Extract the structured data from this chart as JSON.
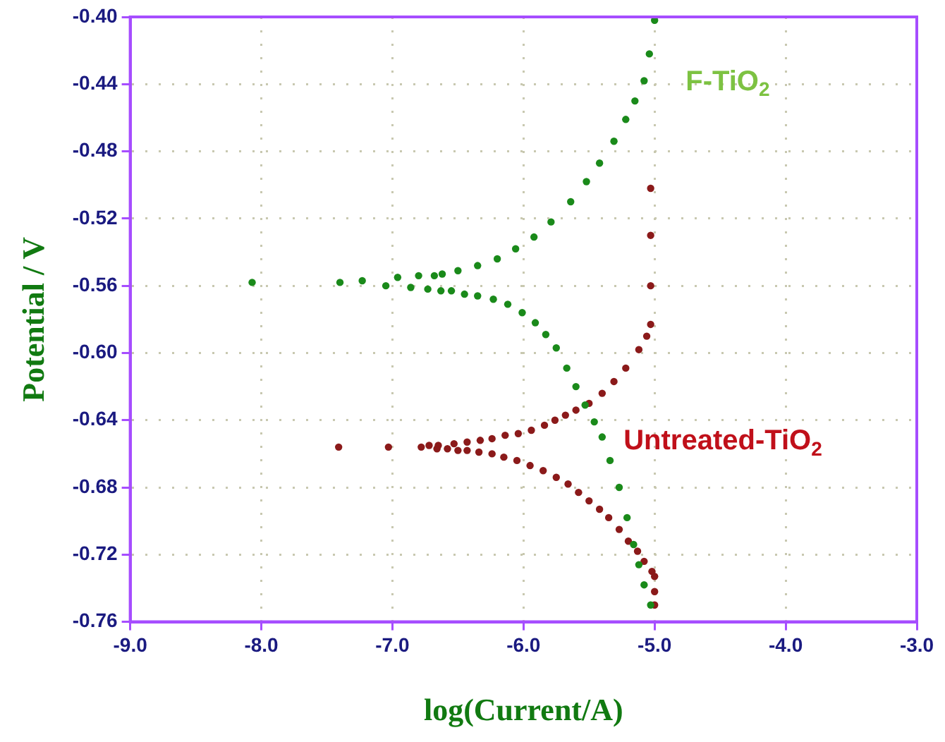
{
  "chart_data": {
    "type": "scatter",
    "xlabel": "log(Current/A)",
    "ylabel": "Potential / V",
    "xlim": [
      -9.0,
      -3.0
    ],
    "xticks": [
      {
        "value": -9,
        "label": "-9.0"
      },
      {
        "value": -8,
        "label": "-8.0"
      },
      {
        "value": -7,
        "label": "-7.0"
      },
      {
        "value": -6,
        "label": "-6.0"
      },
      {
        "value": -5,
        "label": "-5.0"
      },
      {
        "value": -4,
        "label": "-4.0"
      },
      {
        "value": -3,
        "label": "-3.0"
      }
    ],
    "ylim": [
      -0.76,
      -0.4
    ],
    "yticks": [
      {
        "value": -0.76,
        "label": "-0.76"
      },
      {
        "value": -0.72,
        "label": "-0.72"
      },
      {
        "value": -0.68,
        "label": "-0.68"
      },
      {
        "value": -0.64,
        "label": "-0.64"
      },
      {
        "value": -0.6,
        "label": "-0.60"
      },
      {
        "value": -0.56,
        "label": "-0.56"
      },
      {
        "value": -0.52,
        "label": "-0.52"
      },
      {
        "value": -0.48,
        "label": "-0.48"
      },
      {
        "value": -0.44,
        "label": "-0.44"
      },
      {
        "value": -0.4,
        "label": "-0.40"
      }
    ],
    "grid": true,
    "marker": "circle",
    "legend": false,
    "series": [
      {
        "name": "F-TiO$_{2}$",
        "color": "#1a8a1a",
        "x": [
          -5.03,
          -5.08,
          -5.12,
          -5.16,
          -5.21,
          -5.27,
          -5.34,
          -5.4,
          -5.46,
          -5.53,
          -5.6,
          -5.67,
          -5.75,
          -5.83,
          -5.91,
          -6.01,
          -6.12,
          -6.23,
          -6.35,
          -6.45,
          -6.55,
          -6.63,
          -6.73,
          -6.86,
          -7.05,
          -7.23,
          -7.4,
          -8.07,
          -6.96,
          -6.8,
          -6.68,
          -6.62,
          -6.5,
          -6.35,
          -6.2,
          -6.06,
          -5.92,
          -5.79,
          -5.64,
          -5.52,
          -5.42,
          -5.31,
          -5.22,
          -5.15,
          -5.08,
          -5.04,
          -5.0
        ],
        "values": [
          -0.75,
          -0.738,
          -0.726,
          -0.714,
          -0.698,
          -0.68,
          -0.664,
          -0.65,
          -0.641,
          -0.631,
          -0.62,
          -0.609,
          -0.597,
          -0.589,
          -0.582,
          -0.576,
          -0.571,
          -0.568,
          -0.566,
          -0.565,
          -0.563,
          -0.563,
          -0.562,
          -0.561,
          -0.56,
          -0.557,
          -0.558,
          -0.558,
          -0.555,
          -0.554,
          -0.554,
          -0.553,
          -0.551,
          -0.548,
          -0.544,
          -0.538,
          -0.531,
          -0.522,
          -0.51,
          -0.498,
          -0.487,
          -0.474,
          -0.461,
          -0.45,
          -0.438,
          -0.422,
          -0.402
        ]
      },
      {
        "name": "Untreated-TiO$_{2}$",
        "color": "#8b1a1a",
        "x": [
          -5.0,
          -5.0,
          -5.0,
          -5.02,
          -5.08,
          -5.13,
          -5.2,
          -5.27,
          -5.35,
          -5.42,
          -5.5,
          -5.58,
          -5.66,
          -5.75,
          -5.85,
          -5.95,
          -6.05,
          -6.15,
          -6.24,
          -6.34,
          -6.43,
          -6.5,
          -6.58,
          -6.66,
          -6.78,
          -7.03,
          -7.41,
          -6.72,
          -6.65,
          -6.53,
          -6.43,
          -6.33,
          -6.24,
          -6.14,
          -6.04,
          -5.94,
          -5.84,
          -5.76,
          -5.68,
          -5.6,
          -5.5,
          -5.4,
          -5.31,
          -5.22,
          -5.12,
          -5.06,
          -5.03,
          -5.03,
          -5.03,
          -5.03
        ],
        "values": [
          -0.75,
          -0.742,
          -0.733,
          -0.73,
          -0.724,
          -0.718,
          -0.712,
          -0.705,
          -0.698,
          -0.693,
          -0.688,
          -0.683,
          -0.678,
          -0.674,
          -0.67,
          -0.667,
          -0.664,
          -0.662,
          -0.66,
          -0.659,
          -0.658,
          -0.658,
          -0.657,
          -0.657,
          -0.656,
          -0.656,
          -0.656,
          -0.655,
          -0.655,
          -0.654,
          -0.653,
          -0.652,
          -0.651,
          -0.649,
          -0.648,
          -0.646,
          -0.643,
          -0.64,
          -0.637,
          -0.634,
          -0.63,
          -0.624,
          -0.617,
          -0.609,
          -0.598,
          -0.59,
          -0.583,
          -0.56,
          -0.53,
          -0.502
        ]
      }
    ]
  }
}
